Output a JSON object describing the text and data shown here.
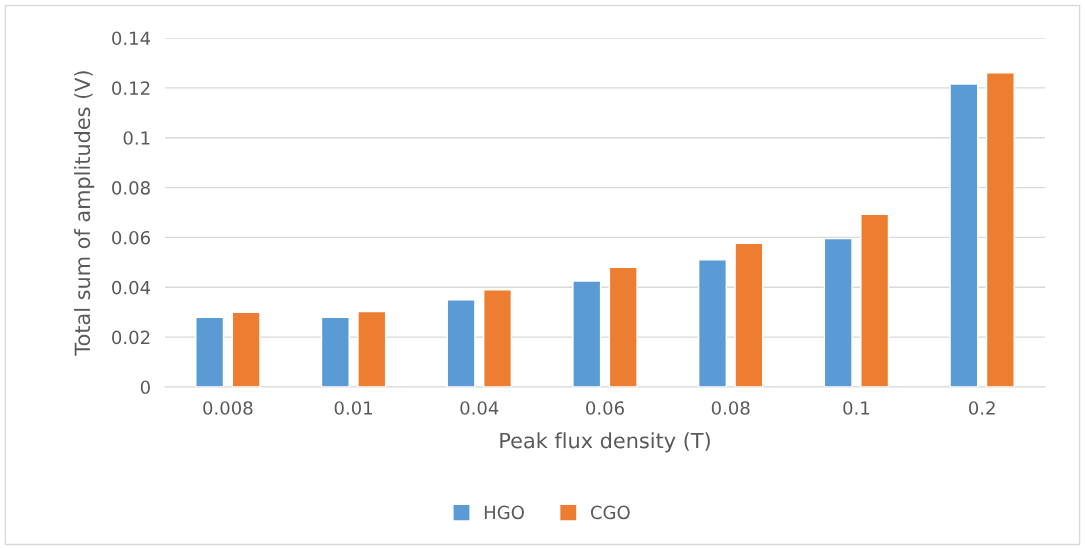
{
  "chart_data": {
    "type": "bar",
    "xlabel": "Peak flux density (T)",
    "ylabel": "Total sum of amplitudes (V)",
    "categories": [
      "0.008",
      "0.01",
      "0.04",
      "0.06",
      "0.08",
      "0.1",
      "0.2"
    ],
    "series": [
      {
        "name": "HGO",
        "color": "#5b9bd5",
        "values": [
          0.028,
          0.028,
          0.035,
          0.0425,
          0.051,
          0.0595,
          0.1215
        ]
      },
      {
        "name": "CGO",
        "color": "#ed7d31",
        "values": [
          0.03,
          0.0303,
          0.039,
          0.048,
          0.0576,
          0.0693,
          0.126
        ]
      }
    ],
    "ylim": [
      0,
      0.14
    ],
    "yticks": [
      0,
      0.02,
      0.04,
      0.06,
      0.08,
      {
        "value": 0.1,
        "label": "0.1"
      },
      0.12,
      0.14
    ],
    "grid": "y",
    "legend": "bottom"
  }
}
